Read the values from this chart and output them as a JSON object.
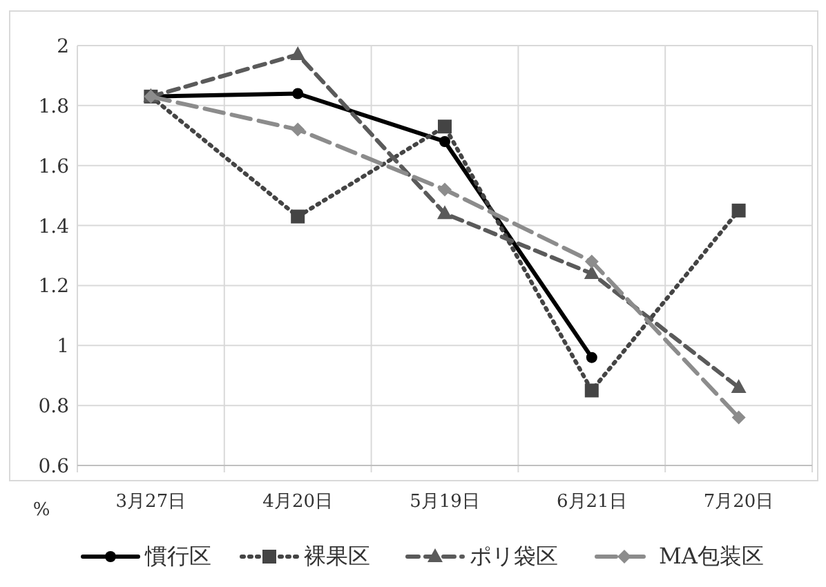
{
  "chart_data": {
    "type": "line",
    "ylabel": "%",
    "categories": [
      "3月27日",
      "4月20日",
      "5月19日",
      "6月21日",
      "7月20日"
    ],
    "series": [
      {
        "name": "慣行区",
        "color": "#000000",
        "marker": "circle",
        "line_style": "solid",
        "values": [
          1.83,
          1.84,
          1.68,
          0.96,
          null
        ]
      },
      {
        "name": "裸果区",
        "color": "#444444",
        "marker": "square",
        "line_style": "dotted",
        "values": [
          1.83,
          1.43,
          1.73,
          0.85,
          1.45
        ]
      },
      {
        "name": "ポリ袋区",
        "color": "#5a5a5a",
        "marker": "triangle",
        "line_style": "dashed",
        "values": [
          1.83,
          1.97,
          1.44,
          1.24,
          0.86
        ]
      },
      {
        "name": "MA包装区",
        "color": "#8c8c8c",
        "marker": "diamond",
        "line_style": "longdash",
        "values": [
          1.83,
          1.72,
          1.52,
          1.28,
          0.76
        ]
      }
    ],
    "ylim": [
      0.6,
      2
    ],
    "yticks": [
      0.6,
      0.8,
      1,
      1.2,
      1.4,
      1.6,
      1.8,
      2
    ],
    "grid": true,
    "legend": "bottom"
  }
}
